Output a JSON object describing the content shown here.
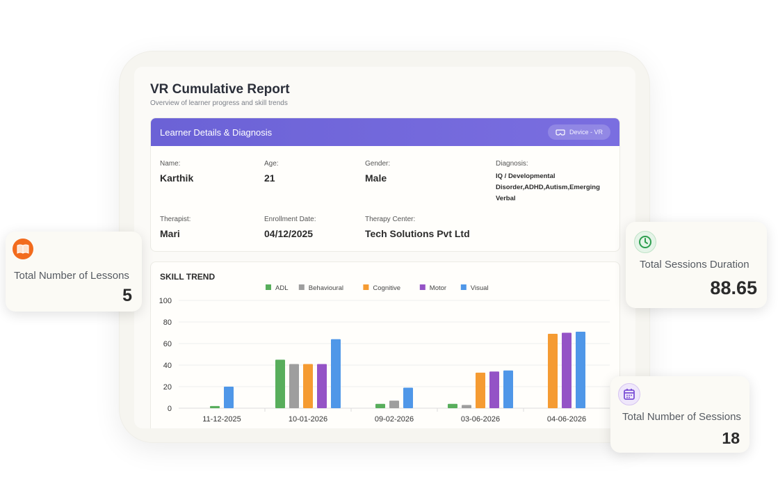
{
  "report": {
    "title": "VR Cumulative Report",
    "subtitle": "Overview of learner progress and skill trends"
  },
  "learner": {
    "header_title": "Learner Details & Diagnosis",
    "device_label": "Device - VR",
    "fields": {
      "name": {
        "label": "Name:",
        "value": "Karthik"
      },
      "age": {
        "label": "Age:",
        "value": "21"
      },
      "gender": {
        "label": "Gender:",
        "value": "Male"
      },
      "diagnosis": {
        "label": "Diagnosis:",
        "value": "IQ / Developmental Disorder,ADHD,Autism,Emerging Verbal"
      },
      "therapist": {
        "label": "Therapist:",
        "value": "Mari"
      },
      "enrollment": {
        "label": "Enrollment Date:",
        "value": "04/12/2025"
      },
      "center": {
        "label": "Therapy Center:",
        "value": "Tech Solutions Pvt Ltd"
      }
    }
  },
  "stats": {
    "lessons": {
      "label": "Total Number of Lessons",
      "value": "5",
      "icon": "book-icon",
      "color": "#f26b1d"
    },
    "duration": {
      "label": "Total Sessions Duration",
      "value": "88.65",
      "icon": "clock-icon",
      "color": "#2e9e4f"
    },
    "sessions": {
      "label": "Total Number of Sessions",
      "value": "18",
      "icon": "calendar-icon",
      "color": "#7b4fd6"
    }
  },
  "chart_data": {
    "type": "bar",
    "title": "SKILL TREND",
    "categories": [
      "11-12-2025",
      "10-01-2026",
      "09-02-2026",
      "03-06-2026",
      "04-06-2026"
    ],
    "series": [
      {
        "name": "ADL",
        "color": "#58ae5c",
        "values": [
          2,
          45,
          4,
          4,
          null
        ]
      },
      {
        "name": "Behavioural",
        "color": "#9e9e9e",
        "values": [
          null,
          41,
          7,
          3,
          null
        ]
      },
      {
        "name": "Cognitive",
        "color": "#f59b32",
        "values": [
          null,
          41,
          null,
          33,
          69
        ]
      },
      {
        "name": "Motor",
        "color": "#9453c6",
        "values": [
          null,
          41,
          null,
          34,
          70
        ]
      },
      {
        "name": "Visual",
        "color": "#4f97e8",
        "values": [
          20,
          64,
          19,
          35,
          71
        ]
      }
    ],
    "ylim": [
      0,
      100
    ],
    "yticks": [
      0,
      20,
      40,
      60,
      80,
      100
    ],
    "legend": "top-center",
    "grid": true
  }
}
